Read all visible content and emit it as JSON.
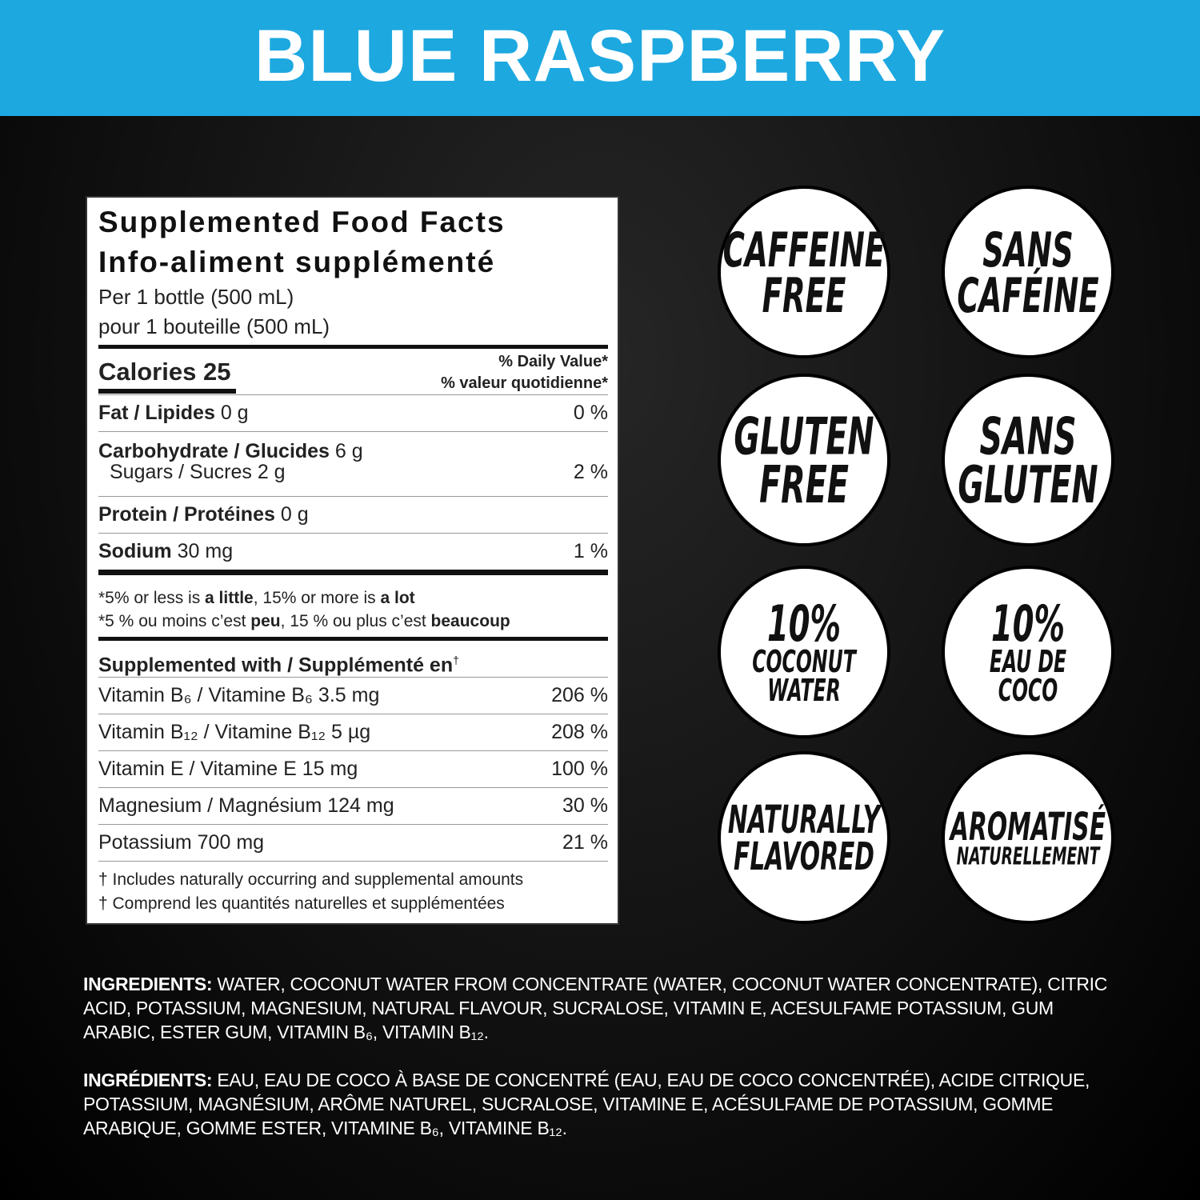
{
  "header": {
    "title": "BLUE RASPBERRY"
  },
  "facts": {
    "title_en": "Supplemented Food Facts",
    "title_fr": "Info-aliment supplémenté",
    "serving_en": "Per 1 bottle (500 mL)",
    "serving_fr": "pour 1 bouteille (500 mL)",
    "calories": "Calories 25",
    "dv_en": "% Daily Value*",
    "dv_fr": "% valeur quotidienne*",
    "rows": [
      {
        "label": "Fat / Lipides",
        "amount": "0 g",
        "dv": "0 %"
      },
      {
        "label": "Carbohydrate / Glucides",
        "amount": "6 g"
      },
      {
        "label": "Sugars / Sucres",
        "amount": "2 g",
        "dv": "2 %"
      },
      {
        "label": "Protein / Protéines",
        "amount": "0 g"
      },
      {
        "label": "Sodium",
        "amount": "30 mg",
        "dv": "1 %"
      }
    ],
    "note_en": [
      "*5% or less is ",
      "a little",
      ", 15% or more is ",
      "a lot"
    ],
    "note_fr": [
      "*5 % ou moins c’est ",
      "peu",
      ", 15 % ou plus c’est ",
      "beaucoup"
    ],
    "supplemented": "Supplemented with / Supplémenté en",
    "dagger": "†",
    "vitamins": [
      {
        "label": "Vitamin B₆ / Vitamine B₆ 3.5 mg",
        "dv": "206 %"
      },
      {
        "label": "Vitamin B₁₂ / Vitamine B₁₂ 5 µg",
        "dv": "208 %"
      },
      {
        "label": "Vitamin E / Vitamine E 15 mg",
        "dv": "100 %"
      },
      {
        "label": "Magnesium / Magnésium 124 mg",
        "dv": "30 %"
      },
      {
        "label": "Potassium 700 mg",
        "dv": "21 %"
      }
    ],
    "footnotes": [
      "† Includes naturally occurring and supplemental amounts",
      "† Comprend les quantités naturelles et supplémentées"
    ]
  },
  "badges": [
    {
      "lines": [
        "CAFFEINE",
        "FREE"
      ]
    },
    {
      "lines": [
        "SANS",
        "CAFÉINE"
      ]
    },
    {
      "lines": [
        "GLUTEN",
        "FREE"
      ]
    },
    {
      "lines": [
        "SANS",
        "GLUTEN"
      ]
    },
    {
      "lines": [
        "10%",
        "COCONUT",
        "WATER"
      ]
    },
    {
      "lines": [
        "10%",
        "EAU DE",
        "COCO"
      ]
    },
    {
      "lines": [
        "NATURALLY",
        "FLAVORED"
      ]
    },
    {
      "lines": [
        "AROMATISÉ",
        "NATURELLEMENT"
      ]
    }
  ],
  "ingredients": [
    {
      "label": "INGREDIENTS:",
      "text": " WATER, COCONUT WATER FROM CONCENTRATE (WATER, COCONUT WATER CONCENTRATE), CITRIC ACID, POTASSIUM, MAGNESIUM, NATURAL FLAVOUR, SUCRALOSE, VITAMIN E, ACESULFAME POTASSIUM, GUM ARABIC, ESTER GUM, VITAMIN B₆, VITAMIN B₁₂."
    },
    {
      "label": "INGRÉDIENTS:",
      "text": " EAU, EAU DE COCO À BASE DE CONCENTRÉ (EAU, EAU DE COCO CONCENTRÉE), ACIDE CITRIQUE, POTASSIUM, MAGNÉSIUM, ARÔME NATUREL, SUCRALOSE, VITAMINE E, ACÉSULFAME DE POTASSIUM, GOMME ARABIQUE, GOMME ESTER, VITAMINE B₆, VITAMINE B₁₂."
    }
  ]
}
